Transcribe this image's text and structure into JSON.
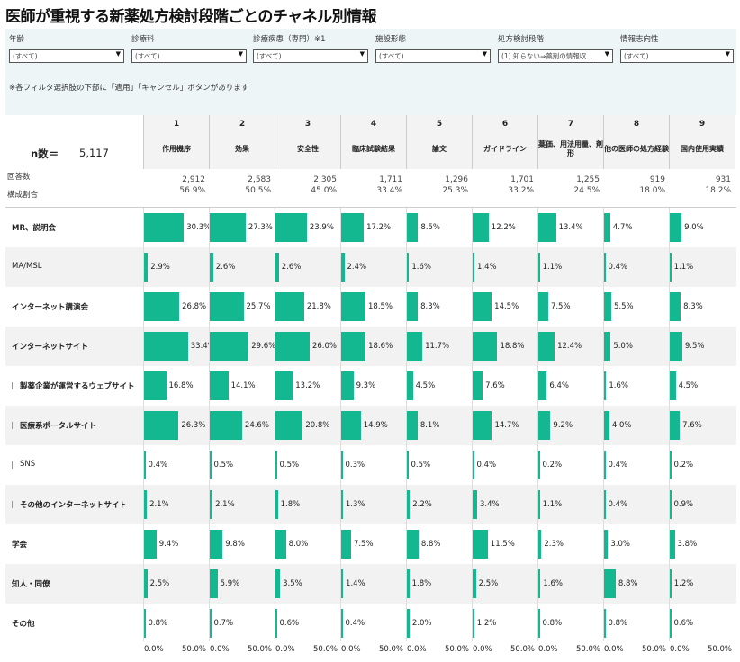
{
  "title": "医師が重視する新薬処方検討段階ごとのチャネル別情報",
  "filters": [
    {
      "label": "年齢",
      "value": "(すべて)"
    },
    {
      "label": "診療科",
      "value": "(すべて)"
    },
    {
      "label": "診療疾患（専門）※1",
      "value": "(すべて)"
    },
    {
      "label": "施設形態",
      "value": "(すべて)"
    },
    {
      "label": "処方検討段階",
      "value": "(1) 知らない⇒薬剤の情報収..."
    },
    {
      "label": "情報志向性",
      "value": "(すべて)"
    }
  ],
  "filter_note": "※各フィルタ選択肢の下部に「適用」「キャンセル」ボタンがあります",
  "n_label": "n数＝",
  "n_value": "5,117",
  "count_label": "回答数",
  "ratio_label": "構成割合",
  "colors": {
    "bar": "#14b890",
    "row_alt": "#f2f2f2"
  },
  "chart_data": {
    "type": "bar",
    "orientation": "horizontal",
    "categories": [
      "MR、説明会",
      "MA/MSL",
      "インターネット講演会",
      "インターネットサイト",
      "製薬企業が運営するウェブサイト",
      "医療系ポータルサイト",
      "SNS",
      "その他のインターネットサイト",
      "学会",
      "知人・同僚",
      "その他"
    ],
    "columns": [
      {
        "num": "1",
        "name": "作用機序",
        "count": "2,912",
        "ratio": "56.9%",
        "values": [
          30.3,
          2.9,
          26.8,
          33.4,
          16.8,
          26.3,
          0.4,
          2.1,
          9.4,
          2.5,
          0.8
        ]
      },
      {
        "num": "2",
        "name": "効果",
        "count": "2,583",
        "ratio": "50.5%",
        "values": [
          27.3,
          2.6,
          25.7,
          29.6,
          14.1,
          24.6,
          0.5,
          2.1,
          9.8,
          5.9,
          0.7
        ]
      },
      {
        "num": "3",
        "name": "安全性",
        "count": "2,305",
        "ratio": "45.0%",
        "values": [
          23.9,
          2.6,
          21.8,
          26.0,
          13.2,
          20.8,
          0.5,
          1.8,
          8.0,
          3.5,
          0.6
        ]
      },
      {
        "num": "4",
        "name": "臨床試験結果",
        "count": "1,711",
        "ratio": "33.4%",
        "values": [
          17.2,
          2.4,
          18.5,
          18.6,
          9.3,
          14.9,
          0.3,
          1.3,
          7.5,
          1.4,
          0.4
        ]
      },
      {
        "num": "5",
        "name": "論文",
        "count": "1,296",
        "ratio": "25.3%",
        "values": [
          8.5,
          1.6,
          8.3,
          11.7,
          4.5,
          8.1,
          0.5,
          2.2,
          8.8,
          1.8,
          2.0
        ]
      },
      {
        "num": "6",
        "name": "ガイドライン",
        "count": "1,701",
        "ratio": "33.2%",
        "values": [
          12.2,
          1.4,
          14.5,
          18.8,
          7.6,
          14.7,
          0.4,
          3.4,
          11.5,
          2.5,
          1.2
        ]
      },
      {
        "num": "7",
        "name": "薬価、用法用量、剤形",
        "count": "1,255",
        "ratio": "24.5%",
        "values": [
          13.4,
          1.1,
          7.5,
          12.4,
          6.4,
          9.2,
          0.2,
          1.1,
          2.3,
          1.6,
          0.8
        ]
      },
      {
        "num": "8",
        "name": "他の医師の処方経験",
        "count": "919",
        "ratio": "18.0%",
        "values": [
          4.7,
          0.4,
          5.5,
          5.0,
          1.6,
          4.0,
          0.4,
          0.4,
          3.0,
          8.8,
          0.8
        ]
      },
      {
        "num": "9",
        "name": "国内使用実績",
        "count": "931",
        "ratio": "18.2%",
        "values": [
          9.0,
          1.1,
          8.3,
          9.5,
          4.5,
          7.6,
          0.2,
          0.9,
          3.8,
          1.2,
          0.6
        ]
      }
    ],
    "value_unit": "%",
    "xlim": [
      0,
      50
    ],
    "axis_ticks": [
      "0.0%",
      "50.0%"
    ],
    "row_markers": [
      false,
      false,
      false,
      false,
      true,
      true,
      true,
      true,
      false,
      false,
      false
    ],
    "label_bold": [
      true,
      false,
      true,
      true,
      true,
      true,
      false,
      true,
      true,
      true,
      true
    ]
  }
}
